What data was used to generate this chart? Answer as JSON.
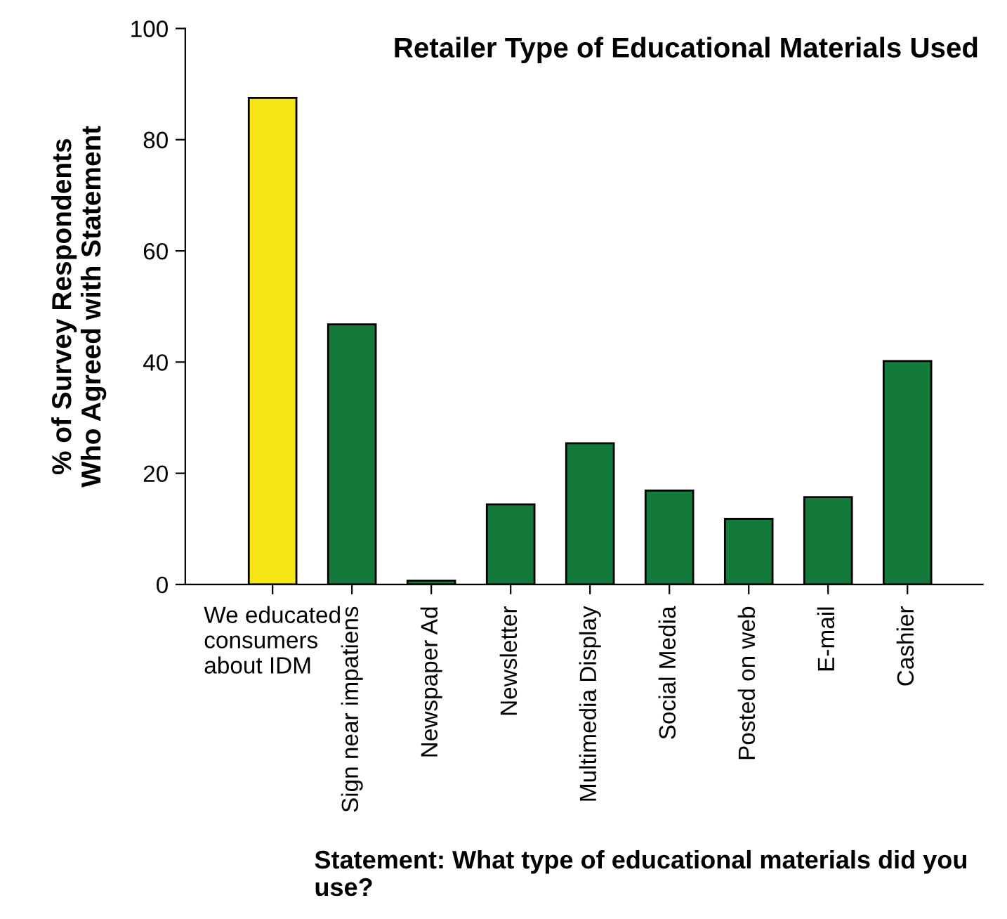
{
  "chart_data": {
    "type": "bar",
    "title": "Retailer Type of Educational Materials Used",
    "xlabel": "Statement: What type of educational materials did you use?",
    "ylabel": "% of Survey Respondents\nWho Agreed with Statement",
    "categories": [
      "We educated\nconsumers\nabout IDM",
      "Sign near impatiens",
      "Newspaper Ad",
      "Newsletter",
      "Multimedia Display",
      "Social Media",
      "Posted on web",
      "E-mail",
      "Cashier"
    ],
    "values": [
      87.5,
      46.8,
      0.7,
      14.4,
      25.4,
      16.9,
      11.8,
      15.7,
      40.2
    ],
    "colors": [
      "#f5e614",
      "#137a3c",
      "#137a3c",
      "#137a3c",
      "#137a3c",
      "#137a3c",
      "#137a3c",
      "#137a3c",
      "#137a3c"
    ],
    "ylim": [
      0,
      100
    ],
    "yticks": [
      0,
      20,
      40,
      60,
      80,
      100
    ],
    "grid": false,
    "legend": false
  }
}
